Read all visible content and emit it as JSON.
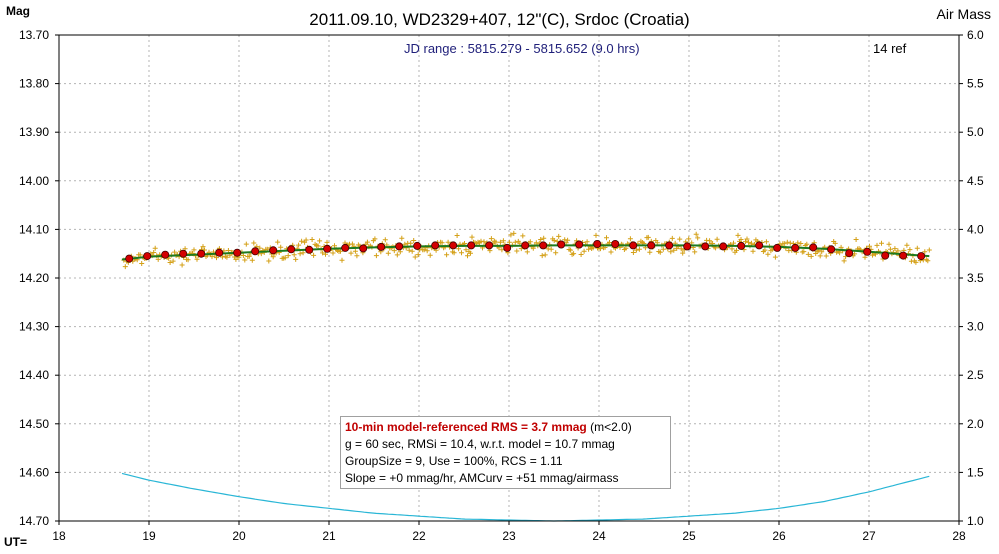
{
  "header": {
    "title": "2011.09.10, WD2329+407, 12\"(C), Srdoc (Croatia)",
    "y_left_title": "Mag",
    "y_right_title": "Air Mass",
    "x_prefix": "UT=",
    "jd_range": "JD range : 5815.279 - 5815.652 (9.0 hrs)",
    "ref_count": "14 ref"
  },
  "stats": {
    "line1_bold": "10-min model-referenced RMS = 3.7 mmag",
    "line1_rest": " (m<2.0)",
    "line2": "g = 60 sec, RMSi = 10.4, w.r.t. model = 10.7 mmag",
    "line3": "GroupSize = 9, Use = 100%, RCS = 1.11",
    "line4": "Slope = +0 mmag/hr, AMCurv = +51 mmag/airmass"
  },
  "colors": {
    "raw_points": "#d4a017",
    "group_points": "#d40000",
    "model_line": "#1e7a1e",
    "airmass_line": "#29b6d6",
    "grid": "#b4b4b4"
  },
  "chart_data": {
    "type": "scatter",
    "title": "2011.09.10, WD2329+407, 12\"(C), Srdoc (Croatia)",
    "xlabel": "UT",
    "ylabel": "Mag",
    "y2label": "Air Mass",
    "xlim": [
      18,
      28
    ],
    "ylim": [
      13.7,
      14.7
    ],
    "y_inverted": true,
    "y2lim": [
      1.0,
      6.0
    ],
    "x_ticks": [
      "18",
      "19",
      "20",
      "21",
      "22",
      "23",
      "24",
      "25",
      "26",
      "27",
      "28"
    ],
    "y_ticks": [
      "13.70",
      "13.80",
      "13.90",
      "14.00",
      "14.10",
      "14.20",
      "14.30",
      "14.40",
      "14.50",
      "14.60",
      "14.70"
    ],
    "y2_ticks": [
      "6.0",
      "5.5",
      "5.0",
      "4.5",
      "4.0",
      "3.5",
      "3.0",
      "2.5",
      "2.0",
      "1.5",
      "1.0"
    ],
    "grid": true,
    "series": [
      {
        "role": "raw",
        "style": "plus-markers",
        "x_range": [
          18.72,
          27.67
        ],
        "count": 540,
        "values_note": "individual 60-s exposures, scatter ±0.02 mag about the model"
      },
      {
        "role": "group-averages",
        "style": "red-dots",
        "x": [
          18.78,
          18.98,
          19.18,
          19.38,
          19.58,
          19.78,
          19.98,
          20.18,
          20.38,
          20.58,
          20.78,
          20.98,
          21.18,
          21.38,
          21.58,
          21.78,
          21.98,
          22.18,
          22.38,
          22.58,
          22.78,
          22.98,
          23.18,
          23.38,
          23.58,
          23.78,
          23.98,
          24.18,
          24.38,
          24.58,
          24.78,
          24.98,
          25.18,
          25.38,
          25.58,
          25.78,
          25.98,
          26.18,
          26.38,
          26.58,
          26.78,
          26.98,
          27.18,
          27.38,
          27.58
        ],
        "y": [
          14.16,
          14.155,
          14.152,
          14.15,
          14.15,
          14.148,
          14.148,
          14.145,
          14.143,
          14.141,
          14.142,
          14.14,
          14.138,
          14.139,
          14.136,
          14.135,
          14.134,
          14.133,
          14.133,
          14.133,
          14.133,
          14.138,
          14.133,
          14.133,
          14.131,
          14.131,
          14.13,
          14.13,
          14.133,
          14.133,
          14.133,
          14.135,
          14.135,
          14.135,
          14.134,
          14.133,
          14.138,
          14.138,
          14.137,
          14.141,
          14.149,
          14.146,
          14.154,
          14.154,
          14.155
        ]
      },
      {
        "role": "model",
        "style": "green-line",
        "x": [
          18.7,
          19.0,
          19.5,
          20.0,
          20.5,
          21.0,
          21.5,
          22.0,
          22.5,
          23.0,
          23.5,
          24.0,
          24.5,
          25.0,
          25.5,
          26.0,
          26.5,
          27.0,
          27.67
        ],
        "y": [
          14.162,
          14.156,
          14.152,
          14.148,
          14.144,
          14.14,
          14.137,
          14.135,
          14.134,
          14.134,
          14.133,
          14.133,
          14.133,
          14.133,
          14.134,
          14.136,
          14.14,
          14.146,
          14.155
        ]
      },
      {
        "role": "airmass",
        "style": "cyan-line",
        "axis": "y2",
        "x": [
          18.7,
          19.0,
          19.5,
          20.0,
          20.5,
          21.0,
          21.5,
          22.0,
          22.5,
          23.0,
          23.5,
          24.0,
          24.5,
          25.0,
          25.5,
          26.0,
          26.5,
          27.0,
          27.67
        ],
        "y": [
          1.49,
          1.42,
          1.33,
          1.25,
          1.18,
          1.13,
          1.08,
          1.05,
          1.02,
          1.01,
          1.0,
          1.01,
          1.02,
          1.05,
          1.08,
          1.13,
          1.2,
          1.3,
          1.46
        ]
      }
    ]
  }
}
